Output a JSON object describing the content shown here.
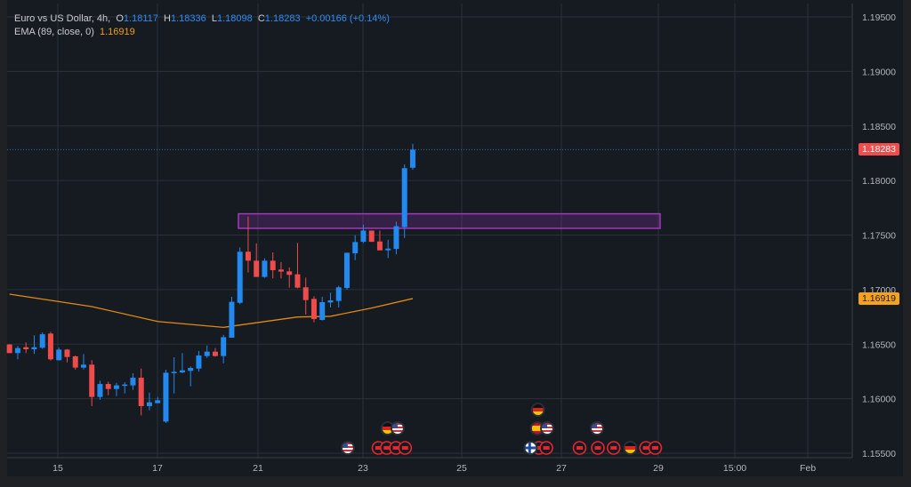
{
  "legend": {
    "symbol": "Euro vs US Dollar, 4h,",
    "o_label": "O",
    "o": "1.18117",
    "h_label": "H",
    "h": "1.18336",
    "l_label": "L",
    "l": "1.18098",
    "c_label": "C",
    "c": "1.18283",
    "change": "+0.00166 (+0.14%)",
    "ema_label": "EMA (89, close, 0)",
    "ema_value": "1.16919"
  },
  "price_labels": {
    "last": "1.18283",
    "ema": "1.16919"
  },
  "colors": {
    "up": "#2189f0",
    "down": "#ee4b4b",
    "ema": "#e08a12",
    "zone": "#a536c2",
    "last_price": "#f24c4c",
    "ema_label_bg": "#f7a21b",
    "grid": "#2b3138",
    "background": "#161b22"
  },
  "chart_data": {
    "type": "candlestick",
    "title": "Euro vs US Dollar, 4h",
    "ylim": [
      1.155,
      1.195
    ],
    "grid": true,
    "y_ticks": [
      "1.19500",
      "1.19000",
      "1.18500",
      "1.18000",
      "1.17500",
      "1.17000",
      "1.16500",
      "1.16000",
      "1.15500"
    ],
    "x_ticks": [
      "15",
      "17",
      "21",
      "23",
      "25",
      "27",
      "29",
      "15:00",
      "Feb"
    ],
    "candles_ohlc": [
      [
        1.16497,
        1.165,
        1.16418,
        1.16418
      ],
      [
        1.16418,
        1.16483,
        1.16361,
        1.16464
      ],
      [
        1.16472,
        1.16515,
        1.16418,
        1.16453
      ],
      [
        1.16453,
        1.16581,
        1.1641,
        1.16472
      ],
      [
        1.16467,
        1.16608,
        1.16456,
        1.16591
      ],
      [
        1.16597,
        1.16613,
        1.1635,
        1.16361
      ],
      [
        1.16353,
        1.16467,
        1.1635,
        1.1645
      ],
      [
        1.1645,
        1.16456,
        1.16333,
        1.16382
      ],
      [
        1.16388,
        1.16396,
        1.16266,
        1.16285
      ],
      [
        1.16285,
        1.1641,
        1.16268,
        1.16312
      ],
      [
        1.16312,
        1.16353,
        1.15932,
        1.16016
      ],
      [
        1.16016,
        1.16165,
        1.15989,
        1.16135
      ],
      [
        1.16135,
        1.16157,
        1.16032,
        1.16089
      ],
      [
        1.16089,
        1.16146,
        1.16024,
        1.16122
      ],
      [
        1.16122,
        1.16151,
        1.16048,
        1.1613
      ],
      [
        1.16122,
        1.16233,
        1.16081,
        1.16192
      ],
      [
        1.16192,
        1.16276,
        1.15847,
        1.15932
      ],
      [
        1.15932,
        1.16056,
        1.15894,
        1.15967
      ],
      [
        1.15959,
        1.16016,
        1.15956,
        1.15986
      ],
      [
        1.1579,
        1.16265,
        1.15777,
        1.16238
      ],
      [
        1.16241,
        1.1638,
        1.16048,
        1.16246
      ],
      [
        1.16241,
        1.16418,
        1.16233,
        1.1626
      ],
      [
        1.16255,
        1.16295,
        1.16113,
        1.16282
      ],
      [
        1.16276,
        1.16437,
        1.16249,
        1.16396
      ],
      [
        1.16391,
        1.16488,
        1.16374,
        1.16431
      ],
      [
        1.16431,
        1.16464,
        1.16385,
        1.16391
      ],
      [
        1.16391,
        1.16586,
        1.16325,
        1.16564
      ],
      [
        1.16559,
        1.16934,
        1.16559,
        1.16888
      ],
      [
        1.16879,
        1.17387,
        1.16866,
        1.17347
      ],
      [
        1.17347,
        1.1767,
        1.17157,
        1.17265
      ],
      [
        1.17265,
        1.17423,
        1.17116,
        1.17116
      ],
      [
        1.17116,
        1.17287,
        1.17108,
        1.17265
      ],
      [
        1.17265,
        1.17341,
        1.17102,
        1.17178
      ],
      [
        1.17184,
        1.17252,
        1.17102,
        1.17165
      ],
      [
        1.17167,
        1.17203,
        1.17018,
        1.17135
      ],
      [
        1.1714,
        1.17428,
        1.17012,
        1.17018
      ],
      [
        1.17021,
        1.1711,
        1.16771,
        1.16904
      ],
      [
        1.16915,
        1.16939,
        1.167,
        1.1673
      ],
      [
        1.16722,
        1.16934,
        1.16717,
        1.16885
      ],
      [
        1.16882,
        1.16972,
        1.16836,
        1.16901
      ],
      [
        1.16896,
        1.17034,
        1.16836,
        1.17021
      ],
      [
        1.17015,
        1.17338,
        1.16999,
        1.17338
      ],
      [
        1.17333,
        1.17499,
        1.1727,
        1.17436
      ],
      [
        1.17438,
        1.17595,
        1.17427,
        1.17541
      ],
      [
        1.17541,
        1.17541,
        1.17438,
        1.17438
      ],
      [
        1.17441,
        1.17541,
        1.1736,
        1.1736
      ],
      [
        1.1736,
        1.17457,
        1.17289,
        1.17376
      ],
      [
        1.17373,
        1.17622,
        1.17324,
        1.17581
      ],
      [
        1.17573,
        1.18148,
        1.17473,
        1.18113
      ],
      [
        1.18117,
        1.18336,
        1.18098,
        1.18283
      ]
    ],
    "ema_series": [
      [
        0,
        1.16958
      ],
      [
        6,
        1.1689
      ],
      [
        10,
        1.16844
      ],
      [
        18,
        1.16708
      ],
      [
        26,
        1.16654
      ],
      [
        35,
        1.16749
      ],
      [
        39,
        1.16755
      ],
      [
        44,
        1.16831
      ],
      [
        49,
        1.16918
      ]
    ],
    "zone": {
      "top": 1.17695,
      "bottom": 1.17562
    },
    "last_price": 1.18283
  },
  "events": [
    {
      "flag": "us",
      "row": 0,
      "slot": 41.1
    },
    {
      "flag": "alert",
      "row": 0,
      "slot": 44.8
    },
    {
      "flag": "alert",
      "row": 0,
      "slot": 45.8
    },
    {
      "flag": "alert",
      "row": 0,
      "slot": 46.9
    },
    {
      "flag": "alert",
      "row": 0,
      "slot": 48.0
    },
    {
      "flag": "alert",
      "row": 0,
      "slot": 64.1
    },
    {
      "flag": "alert",
      "row": 0,
      "slot": 65.0
    },
    {
      "flag": "fi",
      "row": 0,
      "slot": 63.1
    },
    {
      "flag": "alert",
      "row": 0,
      "slot": 69.0
    },
    {
      "flag": "alert",
      "row": 0,
      "slot": 71.2
    },
    {
      "flag": "alert",
      "row": 0,
      "slot": 73.1
    },
    {
      "flag": "de",
      "row": 0,
      "slot": 75.1
    },
    {
      "flag": "alert",
      "row": 0,
      "slot": 77.0
    },
    {
      "flag": "alert",
      "row": 0,
      "slot": 78.1
    },
    {
      "flag": "de",
      "row": 1,
      "slot": 45.9
    },
    {
      "flag": "us",
      "row": 1,
      "slot": 47.1
    },
    {
      "flag": "es",
      "row": 1,
      "slot": 63.9
    },
    {
      "flag": "us",
      "row": 1,
      "slot": 65.1
    },
    {
      "flag": "us",
      "row": 1,
      "slot": 71.1
    },
    {
      "flag": "de",
      "row": 2,
      "slot": 64.0
    }
  ]
}
